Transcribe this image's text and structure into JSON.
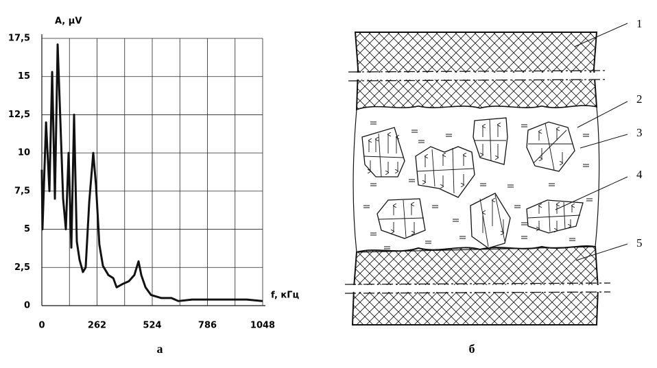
{
  "chart_data": {
    "type": "line",
    "y_label": "A, μV",
    "x_label": "f, кГц",
    "x": [
      0,
      3,
      20,
      36,
      49,
      62,
      75,
      88,
      101,
      114,
      127,
      140,
      153,
      166,
      179,
      195,
      208,
      225,
      244,
      257,
      273,
      290,
      316,
      339,
      355,
      381,
      413,
      439,
      459,
      472,
      492,
      518,
      566,
      615,
      648,
      713,
      778,
      843,
      908,
      973,
      1048
    ],
    "series": [
      {
        "color": "#111111",
        "values": [
          8.9,
          5,
          12,
          7.5,
          15.3,
          7,
          17.1,
          12.1,
          7,
          5,
          10,
          3.8,
          12.5,
          4.2,
          3,
          2.2,
          2.5,
          6.8,
          10,
          7.9,
          4,
          2.6,
          2,
          1.8,
          1.2,
          1.4,
          1.6,
          2,
          2.9,
          2,
          1.2,
          0.7,
          0.5,
          0.5,
          0.3,
          0.4,
          0.4,
          0.4,
          0.4,
          0.4,
          0.3
        ]
      }
    ],
    "xlim": [
      0,
      1048
    ],
    "xticks": [
      0,
      262,
      524,
      786,
      1048
    ],
    "x_minor_grid": [
      131,
      393,
      655,
      917
    ],
    "ylim": [
      0,
      17.5
    ],
    "yticks": [
      0,
      {
        "value": 2.5,
        "label": "2,5"
      },
      5,
      {
        "value": 7.5,
        "label": "7,5"
      },
      10,
      {
        "value": 12.5,
        "label": "12,5"
      },
      15,
      {
        "value": 17.5,
        "label": "17,5"
      }
    ],
    "grid": true
  },
  "panel_labels": [
    "а",
    "б"
  ],
  "diagram_labels": [
    "1",
    "2",
    "3",
    "4",
    "5"
  ]
}
